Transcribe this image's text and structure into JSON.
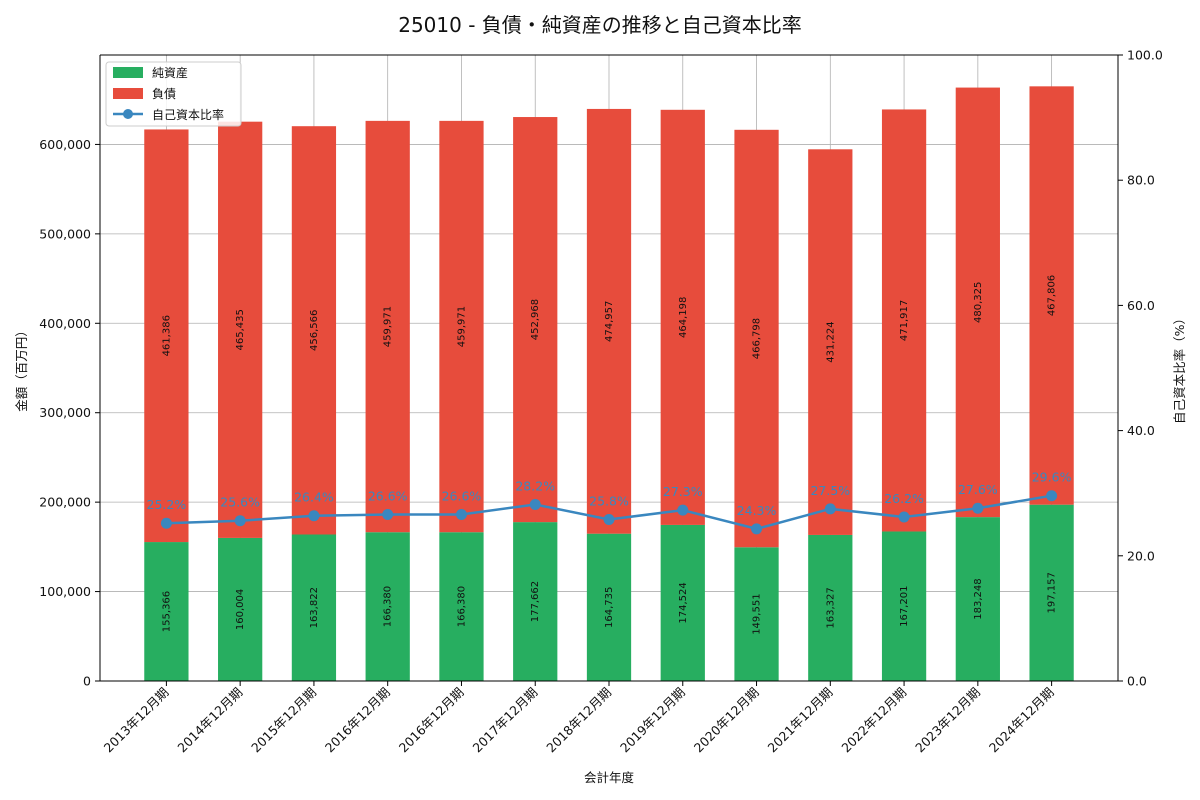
{
  "chart_data": {
    "type": "bar",
    "stacked": true,
    "title": "25010 - 負債・純資産の推移と自己資本比率",
    "xlabel": "会計年度",
    "ylabel": "金額（百万円）",
    "y2label": "自己資本比率（%）",
    "ylim": [
      0,
      700000
    ],
    "y2lim": [
      0,
      100
    ],
    "yticks": [
      0,
      100000,
      200000,
      300000,
      400000,
      500000,
      600000
    ],
    "yticks_labels": [
      "0",
      "100,000",
      "200,000",
      "300,000",
      "400,000",
      "500,000",
      "600,000"
    ],
    "y2ticks": [
      0,
      20,
      40,
      60,
      80,
      100
    ],
    "y2ticks_labels": [
      "0.0",
      "20.0",
      "40.0",
      "60.0",
      "80.0",
      "100.0"
    ],
    "grid": true,
    "legend_position": "top-left",
    "categories": [
      "2013年12月期",
      "2014年12月期",
      "2015年12月期",
      "2016年12月期",
      "2016年12月期",
      "2017年12月期",
      "2018年12月期",
      "2019年12月期",
      "2020年12月期",
      "2021年12月期",
      "2022年12月期",
      "2023年12月期",
      "2024年12月期"
    ],
    "series": [
      {
        "name": "純資産",
        "type": "bar",
        "color": "#27ae60",
        "values": [
          155366,
          160004,
          163822,
          166380,
          166380,
          177662,
          164735,
          174524,
          149551,
          163327,
          167201,
          183248,
          197157
        ],
        "labels": [
          "155,366",
          "160,004",
          "163,822",
          "166,380",
          "166,380",
          "177,662",
          "164,735",
          "174,524",
          "149,551",
          "163,327",
          "167,201",
          "183,248",
          "197,157"
        ]
      },
      {
        "name": "負債",
        "type": "bar",
        "color": "#e74c3c",
        "values": [
          461386,
          465435,
          456566,
          459971,
          459971,
          452968,
          474957,
          464198,
          466798,
          431224,
          471917,
          480325,
          467806
        ],
        "labels": [
          "461,386",
          "465,435",
          "456,566",
          "459,971",
          "459,971",
          "452,968",
          "474,957",
          "464,198",
          "466,798",
          "431,224",
          "471,917",
          "480,325",
          "467,806"
        ]
      },
      {
        "name": "自己資本比率",
        "type": "line",
        "axis": "right",
        "color": "#3a87bf",
        "values": [
          25.2,
          25.6,
          26.4,
          26.6,
          26.6,
          28.2,
          25.8,
          27.3,
          24.3,
          27.5,
          26.2,
          27.6,
          29.6
        ],
        "labels": [
          "25.2%",
          "25.6%",
          "26.4%",
          "26.6%",
          "26.6%",
          "28.2%",
          "25.8%",
          "27.3%",
          "24.3%",
          "27.5%",
          "26.2%",
          "27.6%",
          "29.6%"
        ]
      }
    ]
  }
}
